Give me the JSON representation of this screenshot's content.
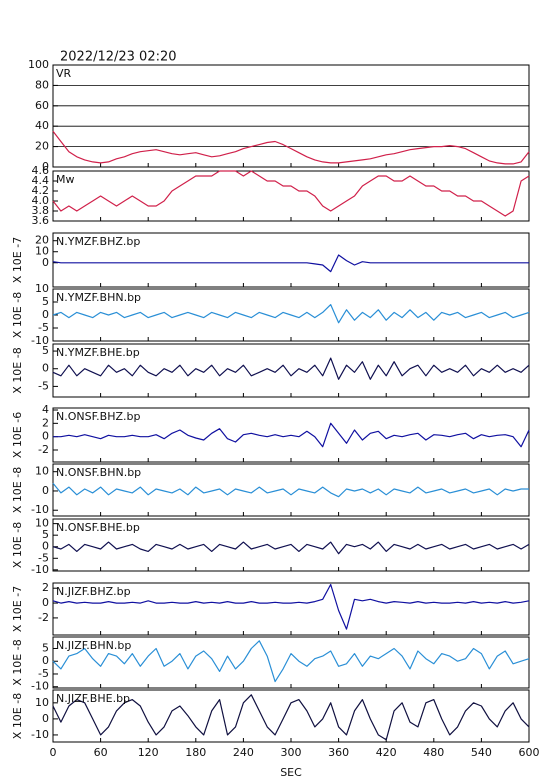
{
  "chart_data": {
    "type": "line",
    "title": "2022/12/23 02:20",
    "xlabel": "SEC",
    "xlim": [
      0,
      600
    ],
    "xticks": [
      0,
      60,
      120,
      180,
      240,
      300,
      360,
      420,
      480,
      540,
      600
    ],
    "x": [
      0,
      10,
      20,
      30,
      40,
      50,
      60,
      70,
      80,
      90,
      100,
      110,
      120,
      130,
      140,
      150,
      160,
      170,
      180,
      190,
      200,
      210,
      220,
      230,
      240,
      250,
      260,
      270,
      280,
      290,
      300,
      310,
      320,
      330,
      340,
      350,
      360,
      370,
      380,
      390,
      400,
      410,
      420,
      430,
      440,
      450,
      460,
      470,
      480,
      490,
      500,
      510,
      520,
      530,
      540,
      550,
      560,
      570,
      580,
      590,
      600
    ],
    "panels": [
      {
        "ylim": [
          0,
          100
        ],
        "yticks": [
          0,
          20,
          40,
          60,
          80,
          100
        ],
        "grid": true,
        "series": [
          {
            "name": "VR",
            "color": "#d0204a",
            "values": [
              35,
              25,
              15,
              10,
              7,
              5,
              4,
              5,
              8,
              10,
              13,
              15,
              16,
              17,
              15,
              13,
              12,
              13,
              14,
              12,
              10,
              11,
              13,
              15,
              18,
              20,
              22,
              24,
              25,
              22,
              18,
              14,
              10,
              7,
              5,
              4,
              4,
              5,
              6,
              7,
              8,
              10,
              12,
              13,
              15,
              17,
              18,
              19,
              20,
              20,
              21,
              20,
              18,
              14,
              10,
              6,
              4,
              3,
              3,
              5,
              15
            ]
          }
        ]
      },
      {
        "ylim": [
          3.6,
          4.6
        ],
        "yticks": [
          3.6,
          3.8,
          {
            "value": 4,
            "label": "4.0"
          },
          4.2,
          4.4,
          4.6
        ],
        "grid": false,
        "series": [
          {
            "name": "Mw",
            "color": "#d0204a",
            "values": [
              4.0,
              3.8,
              3.9,
              3.8,
              3.9,
              4.0,
              4.1,
              4.0,
              3.9,
              4.0,
              4.1,
              4.0,
              3.9,
              3.9,
              4.0,
              4.2,
              4.3,
              4.4,
              4.5,
              4.5,
              4.5,
              4.6,
              4.6,
              4.6,
              4.5,
              4.6,
              4.5,
              4.4,
              4.4,
              4.3,
              4.3,
              4.2,
              4.2,
              4.1,
              3.9,
              3.8,
              3.9,
              4.0,
              4.1,
              4.3,
              4.4,
              4.5,
              4.5,
              4.4,
              4.4,
              4.5,
              4.4,
              4.3,
              4.3,
              4.2,
              4.2,
              4.1,
              4.1,
              4.0,
              4.0,
              3.9,
              3.8,
              3.7,
              3.8,
              4.4,
              4.5
            ]
          }
        ]
      },
      {
        "ylabel": "X 10E -7",
        "ylim": [
          -22,
          27
        ],
        "yticks": [
          0,
          10,
          20
        ],
        "grid": false,
        "series": [
          {
            "name": "N.YMZF.BHZ.bp",
            "color": "#1010a0",
            "values": [
              1,
              0,
              0,
              0,
              0,
              0,
              0,
              0,
              0,
              0,
              0,
              0,
              0,
              0,
              0,
              0,
              0,
              0,
              0,
              0,
              0,
              0,
              0,
              0,
              0,
              0,
              0,
              0,
              0,
              0,
              0,
              0,
              0,
              -1,
              -2,
              -8,
              7,
              2,
              -2,
              1,
              0,
              0,
              0,
              0,
              0,
              0,
              0,
              0,
              0,
              0,
              0,
              0,
              0,
              0,
              0,
              0,
              0,
              0,
              0,
              0,
              0
            ]
          }
        ]
      },
      {
        "ylabel": "X 10E -8",
        "ylim": [
          -10,
          10
        ],
        "yticks": [
          -10,
          -5,
          0,
          5,
          10
        ],
        "grid": false,
        "series": [
          {
            "name": "N.YMZF.BHN.bp",
            "color": "#2a8fd6",
            "values": [
              0,
              1,
              -1,
              1,
              0,
              -1,
              1,
              0,
              1,
              -1,
              0,
              1,
              -1,
              0,
              1,
              -1,
              0,
              1,
              0,
              -1,
              1,
              0,
              -1,
              1,
              0,
              -1,
              1,
              0,
              -1,
              1,
              0,
              -1,
              1,
              -1,
              1,
              4,
              -3,
              2,
              -2,
              1,
              -1,
              2,
              -2,
              1,
              -1,
              2,
              -1,
              1,
              -2,
              1,
              0,
              1,
              -1,
              0,
              1,
              -1,
              0,
              1,
              -1,
              0,
              1
            ]
          }
        ]
      },
      {
        "ylabel": "X 10E -8",
        "ylim": [
          -8,
          7
        ],
        "yticks": [
          -5,
          0,
          5
        ],
        "grid": false,
        "series": [
          {
            "name": "N.YMZF.BHE.bp",
            "color": "#101050",
            "values": [
              -1,
              -2,
              1,
              -2,
              0,
              -1,
              -2,
              1,
              -1,
              0,
              -2,
              1,
              -1,
              -2,
              0,
              -1,
              1,
              -2,
              0,
              -1,
              1,
              -2,
              0,
              -1,
              1,
              -2,
              -1,
              0,
              -1,
              1,
              -2,
              0,
              -1,
              1,
              -2,
              3,
              -3,
              1,
              -1,
              2,
              -3,
              1,
              -2,
              2,
              -2,
              0,
              1,
              -2,
              1,
              -1,
              0,
              -1,
              1,
              -2,
              0,
              -1,
              1,
              -1,
              0,
              -1,
              1
            ]
          }
        ]
      },
      {
        "ylabel": "X 10E -6",
        "ylim": [
          -3.8,
          4.3
        ],
        "yticks": [
          -2,
          0,
          2,
          4
        ],
        "grid": false,
        "series": [
          {
            "name": "N.ONSF.BHZ.bp",
            "color": "#1010a0",
            "values": [
              0,
              0,
              0.2,
              0,
              0.3,
              0,
              -0.3,
              0.2,
              0,
              0,
              0.2,
              0,
              0,
              0.3,
              -0.3,
              0.5,
              1,
              0.2,
              -0.2,
              -0.5,
              0.5,
              1.2,
              -0.3,
              -0.8,
              0.3,
              0.5,
              0.2,
              0,
              0.3,
              0,
              0.2,
              0,
              0.8,
              0,
              -1.5,
              2,
              0.5,
              -1,
              1,
              -0.5,
              0.5,
              0.8,
              -0.3,
              0.2,
              0,
              0.3,
              0.5,
              -0.5,
              0.3,
              0.2,
              0,
              0.3,
              0.5,
              -0.3,
              0.3,
              0,
              0.2,
              0.3,
              0,
              -1.5,
              1
            ]
          }
        ]
      },
      {
        "ylabel": "X 10E -8",
        "ylim": [
          -13,
          14
        ],
        "yticks": [
          -10,
          0,
          10
        ],
        "grid": false,
        "series": [
          {
            "name": "N.ONSF.BHN.bp",
            "color": "#2a8fd6",
            "values": [
              4,
              -1,
              2,
              -2,
              1,
              -1,
              2,
              -2,
              1,
              0,
              -1,
              2,
              -2,
              1,
              0,
              -1,
              1,
              -2,
              2,
              -1,
              0,
              1,
              -2,
              1,
              0,
              -1,
              2,
              -1,
              0,
              1,
              -2,
              1,
              0,
              -1,
              2,
              -1,
              -3,
              1,
              0,
              1,
              -1,
              1,
              -2,
              1,
              0,
              -1,
              2,
              -1,
              0,
              1,
              -1,
              0,
              1,
              -1,
              0,
              1,
              -2,
              1,
              0,
              1,
              1
            ]
          }
        ]
      },
      {
        "ylabel": "X 10E -8",
        "ylim": [
          -10.5,
          12
        ],
        "yticks": [
          -10,
          -5,
          0,
          5,
          10
        ],
        "grid": false,
        "series": [
          {
            "name": "N.ONSF.BHE.bp",
            "color": "#101050",
            "values": [
              0,
              -1,
              1,
              -2,
              1,
              0,
              -1,
              2,
              -1,
              0,
              1,
              -1,
              -2,
              1,
              0,
              -1,
              1,
              -1,
              0,
              1,
              -2,
              1,
              0,
              -1,
              2,
              -1,
              0,
              1,
              -1,
              0,
              1,
              -2,
              1,
              0,
              -1,
              2,
              -3,
              1,
              0,
              1,
              -1,
              2,
              -2,
              1,
              0,
              -1,
              1,
              -1,
              0,
              1,
              -1,
              0,
              1,
              -1,
              0,
              1,
              -1,
              0,
              1,
              -1,
              1
            ]
          }
        ]
      },
      {
        "ylabel": "X 10E -7",
        "ylim": [
          -4.3,
          2.7
        ],
        "yticks": [
          -2,
          0,
          2
        ],
        "grid": false,
        "series": [
          {
            "name": "N.JIZF.BHZ.bp",
            "color": "#1010a0",
            "values": [
              0.3,
              0,
              0.2,
              0,
              0.1,
              0,
              0,
              0.2,
              0,
              0,
              0.1,
              0,
              0.3,
              0,
              0,
              0.1,
              0,
              0,
              0.2,
              0,
              0.1,
              0,
              0.2,
              0,
              0,
              0.2,
              0,
              0,
              0.1,
              0,
              0,
              0.1,
              0,
              0.2,
              0.5,
              2.5,
              -1,
              -3.5,
              0.5,
              0.3,
              0.5,
              0.2,
              0,
              0.2,
              0.1,
              0,
              0.2,
              0,
              0.1,
              0,
              0,
              0.1,
              0,
              0.2,
              0,
              0.1,
              0,
              0.2,
              0,
              0.1,
              0.3
            ]
          }
        ]
      },
      {
        "ylabel": "X 10E -8",
        "ylim": [
          -10.5,
          9.5
        ],
        "yticks": [
          -10,
          -5,
          0,
          5
        ],
        "grid": false,
        "series": [
          {
            "name": "N.JIZF.BHN.bp",
            "color": "#2a8fd6",
            "values": [
              0,
              -3,
              2,
              3,
              5,
              1,
              -2,
              3,
              2,
              -1,
              3,
              -2,
              2,
              5,
              -2,
              0,
              3,
              -3,
              2,
              4,
              1,
              -4,
              2,
              -3,
              0,
              5,
              8,
              2,
              -8,
              -3,
              3,
              0,
              -2,
              1,
              2,
              4,
              -2,
              -1,
              3,
              -2,
              2,
              1,
              3,
              5,
              2,
              -3,
              4,
              1,
              -1,
              3,
              2,
              0,
              1,
              5,
              3,
              -3,
              2,
              4,
              -1,
              0,
              1
            ]
          }
        ]
      },
      {
        "ylabel": "X 10E -8",
        "ylim": [
          -14.4,
          18
        ],
        "yticks": [
          -10,
          0,
          10
        ],
        "grid": false,
        "series": [
          {
            "name": "N.JIZF.BHE.bp",
            "color": "#101040",
            "values": [
              8,
              -2,
              8,
              12,
              10,
              0,
              -10,
              -5,
              5,
              10,
              12,
              8,
              -2,
              -10,
              -5,
              5,
              8,
              2,
              -5,
              -10,
              5,
              12,
              -10,
              -5,
              10,
              15,
              5,
              -5,
              -10,
              0,
              10,
              12,
              5,
              -5,
              0,
              10,
              -5,
              -10,
              5,
              12,
              0,
              -10,
              -13,
              5,
              10,
              -2,
              -5,
              10,
              12,
              0,
              -10,
              -5,
              5,
              10,
              8,
              0,
              -5,
              5,
              10,
              0,
              -5
            ]
          }
        ]
      }
    ]
  }
}
